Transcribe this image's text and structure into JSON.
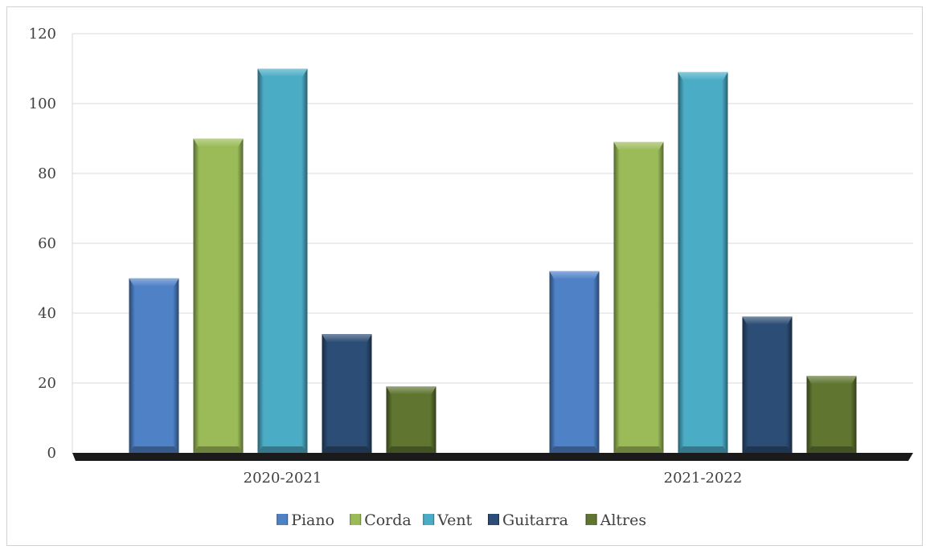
{
  "chart_data": {
    "type": "bar",
    "categories": [
      "2020-2021",
      "2021-2022"
    ],
    "series": [
      {
        "name": "Piano",
        "values": [
          50,
          52
        ],
        "color": "#4f81c7"
      },
      {
        "name": "Corda",
        "values": [
          90,
          89
        ],
        "color": "#9bbb59"
      },
      {
        "name": "Vent",
        "values": [
          110,
          109
        ],
        "color": "#4bacc6"
      },
      {
        "name": "Guitarra",
        "values": [
          34,
          39
        ],
        "color": "#2c4d75"
      },
      {
        "name": "Altres",
        "values": [
          19,
          22
        ],
        "color": "#5f7530"
      }
    ],
    "yticks": [
      0,
      20,
      40,
      60,
      80,
      100,
      120
    ],
    "ylim": [
      0,
      120
    ],
    "grid": true,
    "legend_position": "bottom",
    "title": "",
    "xlabel": "",
    "ylabel": ""
  }
}
